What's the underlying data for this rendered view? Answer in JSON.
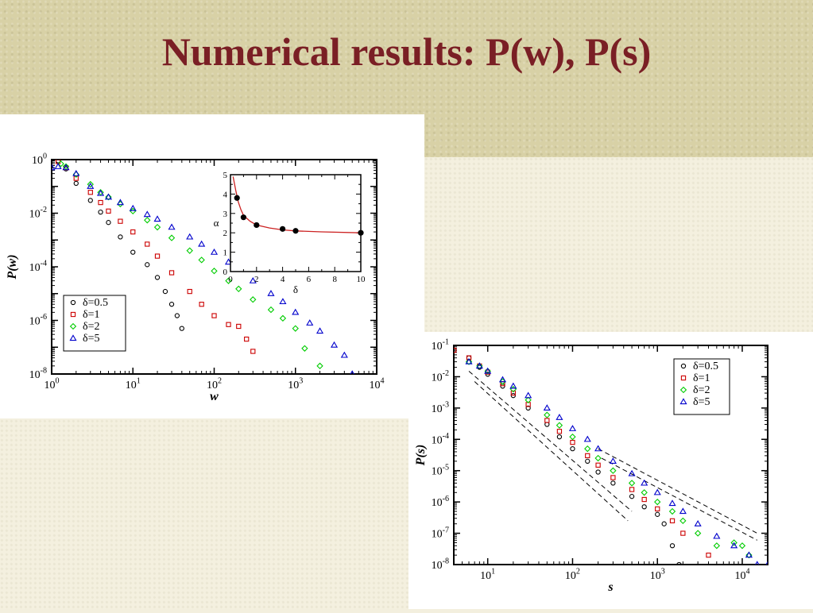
{
  "slide": {
    "title": "Numerical results: P(w), P(s)"
  },
  "chart_data": [
    {
      "type": "scatter",
      "ylabel": "P(w)",
      "xlabel": "w",
      "xscale": "log",
      "yscale": "log",
      "xlim_exp": [
        0,
        4
      ],
      "ylim_exp": [
        -8,
        0
      ],
      "x_tick_labels": [
        {
          "base": "10",
          "exp": "0"
        },
        {
          "base": "10",
          "exp": "1"
        },
        {
          "base": "10",
          "exp": "2"
        },
        {
          "base": "10",
          "exp": "3"
        },
        {
          "base": "10",
          "exp": "4"
        }
      ],
      "y_tick_labels": [
        {
          "base": "10",
          "exp": "0"
        },
        {
          "base": "10",
          "exp": "-2"
        },
        {
          "base": "10",
          "exp": "-4"
        },
        {
          "base": "10",
          "exp": "-6"
        },
        {
          "base": "10",
          "exp": "-8"
        }
      ],
      "legend_position": "bottom-left",
      "series": [
        {
          "name": "δ=0.5",
          "color": "#000000",
          "marker": "circle",
          "points": [
            [
              1.0,
              1.6
            ],
            [
              1.1,
              1.5
            ],
            [
              1.2,
              0.9
            ],
            [
              1.5,
              0.45
            ],
            [
              2.0,
              0.13
            ],
            [
              3.0,
              0.03
            ],
            [
              4.0,
              0.011
            ],
            [
              5.0,
              0.0045
            ],
            [
              7.0,
              0.0013
            ],
            [
              10.0,
              0.00035
            ],
            [
              15.0,
              0.00012
            ],
            [
              20.0,
              4e-05
            ],
            [
              25.0,
              1.2e-05
            ],
            [
              30.0,
              4e-06
            ],
            [
              35.0,
              1.5e-06
            ],
            [
              40.0,
              5e-07
            ]
          ]
        },
        {
          "name": "δ=1",
          "color": "#cc0000",
          "marker": "square",
          "points": [
            [
              1.2,
              0.85
            ],
            [
              1.5,
              0.5
            ],
            [
              2.0,
              0.2
            ],
            [
              3.0,
              0.06
            ],
            [
              4.0,
              0.025
            ],
            [
              5.0,
              0.012
            ],
            [
              7.0,
              0.005
            ],
            [
              10.0,
              0.002
            ],
            [
              15.0,
              0.0007
            ],
            [
              20.0,
              0.00025
            ],
            [
              30.0,
              6e-05
            ],
            [
              50.0,
              1.2e-05
            ],
            [
              70.0,
              4e-06
            ],
            [
              100.0,
              1.5e-06
            ],
            [
              150.0,
              7e-07
            ],
            [
              200.0,
              6e-07
            ],
            [
              250.0,
              2e-07
            ],
            [
              300.0,
              7e-08
            ]
          ]
        },
        {
          "name": "δ=2",
          "color": "#00cc00",
          "marker": "diamond",
          "points": [
            [
              1.3,
              0.7
            ],
            [
              1.5,
              0.55
            ],
            [
              2.0,
              0.28
            ],
            [
              3.0,
              0.12
            ],
            [
              4.0,
              0.06
            ],
            [
              5.0,
              0.04
            ],
            [
              7.0,
              0.022
            ],
            [
              10.0,
              0.012
            ],
            [
              15.0,
              0.0055
            ],
            [
              20.0,
              0.003
            ],
            [
              30.0,
              0.0012
            ],
            [
              50.0,
              0.0004
            ],
            [
              70.0,
              0.00018
            ],
            [
              100.0,
              7e-05
            ],
            [
              150.0,
              3e-05
            ],
            [
              200.0,
              1.5e-05
            ],
            [
              300.0,
              6e-06
            ],
            [
              500.0,
              2.5e-06
            ],
            [
              700.0,
              1.2e-06
            ],
            [
              1000.0,
              5e-07
            ],
            [
              1300.0,
              9e-08
            ],
            [
              2000.0,
              2e-08
            ]
          ]
        },
        {
          "name": "δ=5",
          "color": "#0000cc",
          "marker": "triangle",
          "points": [
            [
              1.0,
              0.5
            ],
            [
              1.2,
              0.55
            ],
            [
              1.5,
              0.5
            ],
            [
              2.0,
              0.3
            ],
            [
              3.0,
              0.1
            ],
            [
              4.0,
              0.055
            ],
            [
              5.0,
              0.04
            ],
            [
              7.0,
              0.025
            ],
            [
              10.0,
              0.015
            ],
            [
              15.0,
              0.009
            ],
            [
              20.0,
              0.006
            ],
            [
              30.0,
              0.003
            ],
            [
              50.0,
              0.0013
            ],
            [
              70.0,
              0.0007
            ],
            [
              100.0,
              0.00035
            ],
            [
              150.0,
              0.00015
            ],
            [
              200.0,
              8e-05
            ],
            [
              300.0,
              3e-05
            ],
            [
              500.0,
              1e-05
            ],
            [
              700.0,
              5e-06
            ],
            [
              1000.0,
              2e-06
            ],
            [
              1500.0,
              8e-07
            ],
            [
              2000.0,
              4e-07
            ],
            [
              3000.0,
              1.2e-07
            ],
            [
              4000.0,
              5e-08
            ],
            [
              5000.0,
              1e-08
            ]
          ]
        }
      ],
      "inset": {
        "type": "line",
        "xlabel": "δ",
        "ylabel": "α",
        "xlim": [
          0,
          10
        ],
        "ylim": [
          0,
          5
        ],
        "xticks": [
          "0",
          "2",
          "4",
          "6",
          "8",
          "10"
        ],
        "yticks": [
          "0",
          "1",
          "2",
          "3",
          "4",
          "5"
        ],
        "points": [
          [
            0.5,
            3.8
          ],
          [
            1.0,
            2.8
          ],
          [
            2.0,
            2.4
          ],
          [
            4.0,
            2.2
          ],
          [
            5.0,
            2.1
          ],
          [
            10.0,
            2.0
          ]
        ],
        "fit": [
          [
            0.2,
            4.9
          ],
          [
            0.4,
            4.2
          ],
          [
            0.6,
            3.6
          ],
          [
            0.8,
            3.2
          ],
          [
            1.0,
            2.9
          ],
          [
            1.5,
            2.6
          ],
          [
            2.0,
            2.4
          ],
          [
            3.0,
            2.25
          ],
          [
            4.0,
            2.15
          ],
          [
            5.0,
            2.1
          ],
          [
            7.0,
            2.05
          ],
          [
            10.0,
            2.0
          ]
        ]
      }
    },
    {
      "type": "scatter",
      "ylabel": "P(s)",
      "xlabel": "s",
      "xscale": "log",
      "yscale": "log",
      "xlim_exp": [
        0.6,
        4.3
      ],
      "ylim_exp": [
        -8,
        -1
      ],
      "x_tick_labels": [
        {
          "base": "10",
          "exp": "1"
        },
        {
          "base": "10",
          "exp": "2"
        },
        {
          "base": "10",
          "exp": "3"
        },
        {
          "base": "10",
          "exp": "4"
        }
      ],
      "y_tick_labels": [
        {
          "base": "10",
          "exp": "-1"
        },
        {
          "base": "10",
          "exp": "-2"
        },
        {
          "base": "10",
          "exp": "-3"
        },
        {
          "base": "10",
          "exp": "-4"
        },
        {
          "base": "10",
          "exp": "-5"
        },
        {
          "base": "10",
          "exp": "-6"
        },
        {
          "base": "10",
          "exp": "-7"
        },
        {
          "base": "10",
          "exp": "-8"
        }
      ],
      "legend_position": "top-right",
      "series": [
        {
          "name": "δ=0.5",
          "color": "#000000",
          "marker": "circle",
          "points": [
            [
              4.0,
              0.07
            ],
            [
              6.0,
              0.04
            ],
            [
              8.0,
              0.02
            ],
            [
              10.0,
              0.012
            ],
            [
              15.0,
              0.005
            ],
            [
              20.0,
              0.0025
            ],
            [
              30.0,
              0.001
            ],
            [
              50.0,
              0.0003
            ],
            [
              70.0,
              0.00012
            ],
            [
              100.0,
              5e-05
            ],
            [
              150.0,
              2e-05
            ],
            [
              200.0,
              9e-06
            ],
            [
              300.0,
              4e-06
            ],
            [
              500.0,
              1.5e-06
            ],
            [
              700.0,
              7e-07
            ],
            [
              1000.0,
              4e-07
            ],
            [
              1200.0,
              2e-07
            ],
            [
              1500.0,
              4e-08
            ],
            [
              1800.0,
              1e-08
            ]
          ]
        },
        {
          "name": "δ=1",
          "color": "#cc0000",
          "marker": "square",
          "points": [
            [
              4.0,
              0.07
            ],
            [
              6.0,
              0.04
            ],
            [
              8.0,
              0.022
            ],
            [
              10.0,
              0.014
            ],
            [
              15.0,
              0.006
            ],
            [
              20.0,
              0.003
            ],
            [
              30.0,
              0.0013
            ],
            [
              50.0,
              0.0004
            ],
            [
              70.0,
              0.00018
            ],
            [
              100.0,
              8e-05
            ],
            [
              150.0,
              3e-05
            ],
            [
              200.0,
              1.5e-05
            ],
            [
              300.0,
              6e-06
            ],
            [
              500.0,
              2.5e-06
            ],
            [
              700.0,
              1.2e-06
            ],
            [
              1000.0,
              6e-07
            ],
            [
              1500.0,
              2.5e-07
            ],
            [
              2000.0,
              1e-07
            ],
            [
              4000.0,
              2e-08
            ]
          ]
        },
        {
          "name": "δ=2",
          "color": "#00cc00",
          "marker": "diamond",
          "points": [
            [
              6.0,
              0.03
            ],
            [
              8.0,
              0.022
            ],
            [
              10.0,
              0.015
            ],
            [
              15.0,
              0.007
            ],
            [
              20.0,
              0.004
            ],
            [
              30.0,
              0.0018
            ],
            [
              50.0,
              0.0006
            ],
            [
              70.0,
              0.00028
            ],
            [
              100.0,
              0.00012
            ],
            [
              150.0,
              5e-05
            ],
            [
              200.0,
              2.5e-05
            ],
            [
              300.0,
              1e-05
            ],
            [
              500.0,
              4e-06
            ],
            [
              700.0,
              2e-06
            ],
            [
              1000.0,
              1e-06
            ],
            [
              1500.0,
              5e-07
            ],
            [
              2000.0,
              2.5e-07
            ],
            [
              3000.0,
              1e-07
            ],
            [
              5000.0,
              4e-08
            ],
            [
              8000.0,
              5e-08
            ],
            [
              10000.0,
              4e-08
            ],
            [
              12000.0,
              2e-08
            ]
          ]
        },
        {
          "name": "δ=5",
          "color": "#0000cc",
          "marker": "triangle",
          "points": [
            [
              6.0,
              0.03
            ],
            [
              8.0,
              0.022
            ],
            [
              10.0,
              0.015
            ],
            [
              15.0,
              0.008
            ],
            [
              20.0,
              0.005
            ],
            [
              30.0,
              0.0025
            ],
            [
              50.0,
              0.001
            ],
            [
              70.0,
              0.0005
            ],
            [
              100.0,
              0.00022
            ],
            [
              150.0,
              0.0001
            ],
            [
              200.0,
              5e-05
            ],
            [
              300.0,
              2e-05
            ],
            [
              500.0,
              8e-06
            ],
            [
              700.0,
              4e-06
            ],
            [
              1000.0,
              2e-06
            ],
            [
              1500.0,
              9e-07
            ],
            [
              2000.0,
              5e-07
            ],
            [
              3000.0,
              2e-07
            ],
            [
              5000.0,
              8e-08
            ],
            [
              8000.0,
              4e-08
            ],
            [
              12000.0,
              2e-08
            ],
            [
              15000.0,
              1e-08
            ],
            [
              20000.0,
              1e-08
            ]
          ]
        }
      ],
      "guide_lines": [
        {
          "from": [
            6.0,
            0.015
          ],
          "to": [
            500.0,
            5e-07
          ]
        },
        {
          "from": [
            7.0,
            0.007
          ],
          "to": [
            450.0,
            2.5e-07
          ]
        },
        {
          "from": [
            200.0,
            5e-05
          ],
          "to": [
            15000.0,
            1e-07
          ]
        },
        {
          "from": [
            220.0,
            2.5e-05
          ],
          "to": [
            15000.0,
            6e-08
          ]
        }
      ]
    }
  ]
}
